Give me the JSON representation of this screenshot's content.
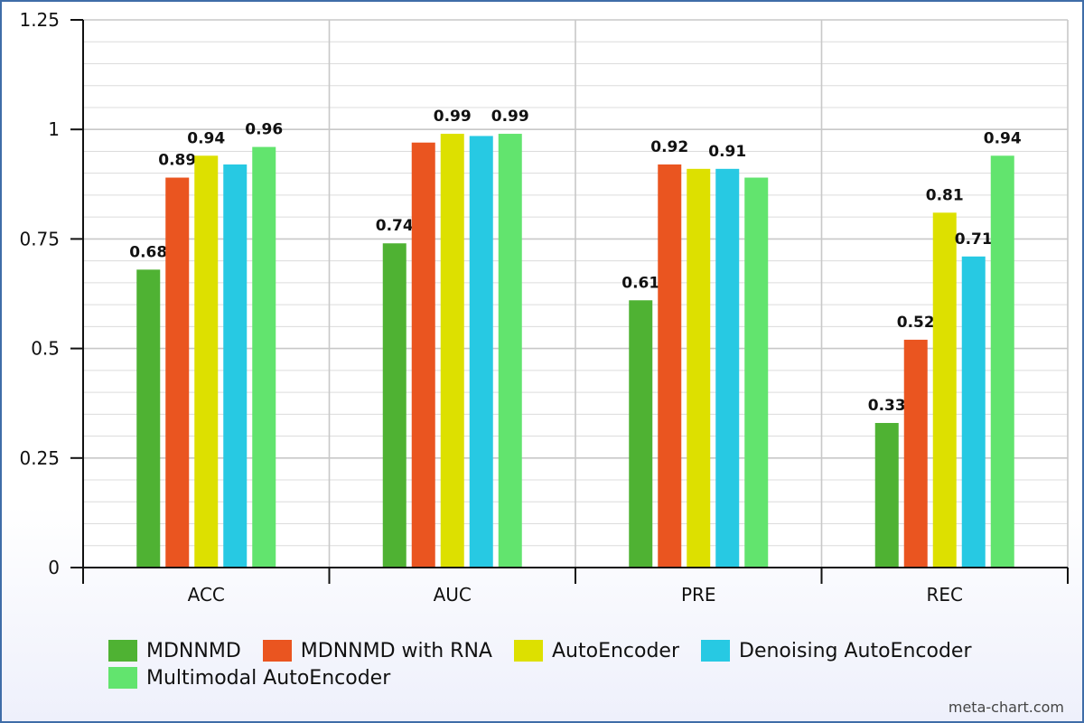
{
  "chart_data": {
    "type": "bar",
    "categories": [
      "ACC",
      "AUC",
      "PRE",
      "REC"
    ],
    "series": [
      {
        "name": "MDNNMD",
        "color": "#4fb233",
        "values": [
          0.68,
          0.74,
          0.61,
          0.33
        ]
      },
      {
        "name": "MDNNMD with RNA",
        "color": "#ea5520",
        "values": [
          0.89,
          0.97,
          0.92,
          0.52
        ]
      },
      {
        "name": "AutoEncoder",
        "color": "#dde000",
        "values": [
          0.94,
          0.99,
          0.91,
          0.81
        ]
      },
      {
        "name": "Denoising AutoEncoder",
        "color": "#27c9e3",
        "values": [
          0.92,
          0.985,
          0.91,
          0.71
        ]
      },
      {
        "name": "Multimodal AutoEncoder",
        "color": "#62e46e",
        "values": [
          0.96,
          0.99,
          0.89,
          0.94
        ]
      }
    ],
    "data_labels": [
      [
        "0.68",
        "0.74",
        "0.61",
        "0.33"
      ],
      [
        "0.89",
        "",
        "0.92",
        "0.52"
      ],
      [
        "0.94",
        "0.99",
        "",
        "0.81"
      ],
      [
        "",
        "",
        "0.91",
        "0.71"
      ],
      [
        "0.96",
        "0.99",
        "",
        "0.94"
      ]
    ],
    "yticks": [
      "0",
      "0.25",
      "0.5",
      "0.75",
      "1",
      "1.25"
    ],
    "ylim": [
      0,
      1.25
    ],
    "xlabel": "",
    "ylabel": "",
    "title": "",
    "grid": true,
    "legend_position": "bottom"
  },
  "credit": "meta-chart.com"
}
